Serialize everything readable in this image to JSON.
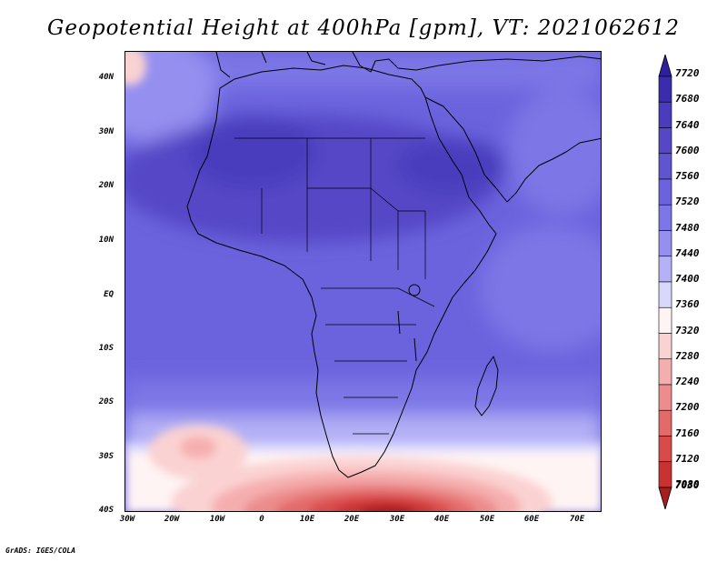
{
  "title": "Geopotential Height at 400hPa [gpm], VT: 2021062612",
  "footer": "GrADS: IGES/COLA",
  "lat_labels": [
    "40N",
    "30N",
    "20N",
    "10N",
    "EQ",
    "10S",
    "20S",
    "30S",
    "40S"
  ],
  "lon_labels": [
    "30W",
    "20W",
    "10W",
    "0",
    "10E",
    "20E",
    "30E",
    "40E",
    "50E",
    "60E",
    "70E"
  ],
  "colorbar": {
    "levels": [
      "7720",
      "7680",
      "7640",
      "7600",
      "7560",
      "7520",
      "7480",
      "7440",
      "7400",
      "7360",
      "7320",
      "7280",
      "7240",
      "7200",
      "7160",
      "7120",
      "7080",
      "7030"
    ],
    "colors": [
      "#2e1ea0",
      "#3b2cae",
      "#4a3cbd",
      "#5547c6",
      "#5f55d0",
      "#6b63dd",
      "#7c76e6",
      "#958ff0",
      "#b4b1f6",
      "#d8d7fc",
      "#fff4f4",
      "#fbd2d2",
      "#f5aeae",
      "#ec8c8c",
      "#e36a6a",
      "#d94b4b",
      "#c93232",
      "#a81e1e"
    ]
  }
}
